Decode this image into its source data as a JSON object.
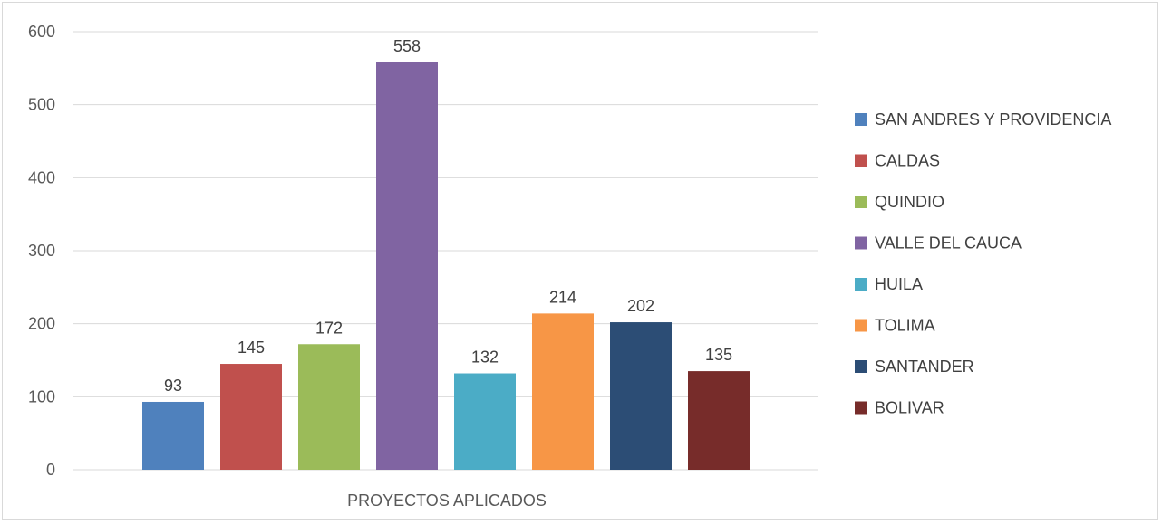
{
  "chart_data": {
    "type": "bar",
    "title": "",
    "xlabel": "PROYECTOS APLICADOS",
    "ylabel": "",
    "ylim": [
      0,
      600
    ],
    "yticks": [
      0,
      100,
      200,
      300,
      400,
      500,
      600
    ],
    "grid": true,
    "legend_position": "right",
    "categories": [
      "PROYECTOS APLICADOS"
    ],
    "series": [
      {
        "name": "SAN ANDRES Y PROVIDENCIA",
        "values": [
          93
        ],
        "color": "#4f81bd"
      },
      {
        "name": "CALDAS",
        "values": [
          145
        ],
        "color": "#c0504d"
      },
      {
        "name": "QUINDIO",
        "values": [
          172
        ],
        "color": "#9bbb59"
      },
      {
        "name": "VALLE DEL CAUCA",
        "values": [
          558
        ],
        "color": "#8064a2"
      },
      {
        "name": "HUILA",
        "values": [
          132
        ],
        "color": "#4bacc6"
      },
      {
        "name": "TOLIMA",
        "values": [
          214
        ],
        "color": "#f79646"
      },
      {
        "name": "SANTANDER",
        "values": [
          202
        ],
        "color": "#2c4d75"
      },
      {
        "name": "BOLIVAR",
        "values": [
          135
        ],
        "color": "#772c2a"
      }
    ]
  }
}
